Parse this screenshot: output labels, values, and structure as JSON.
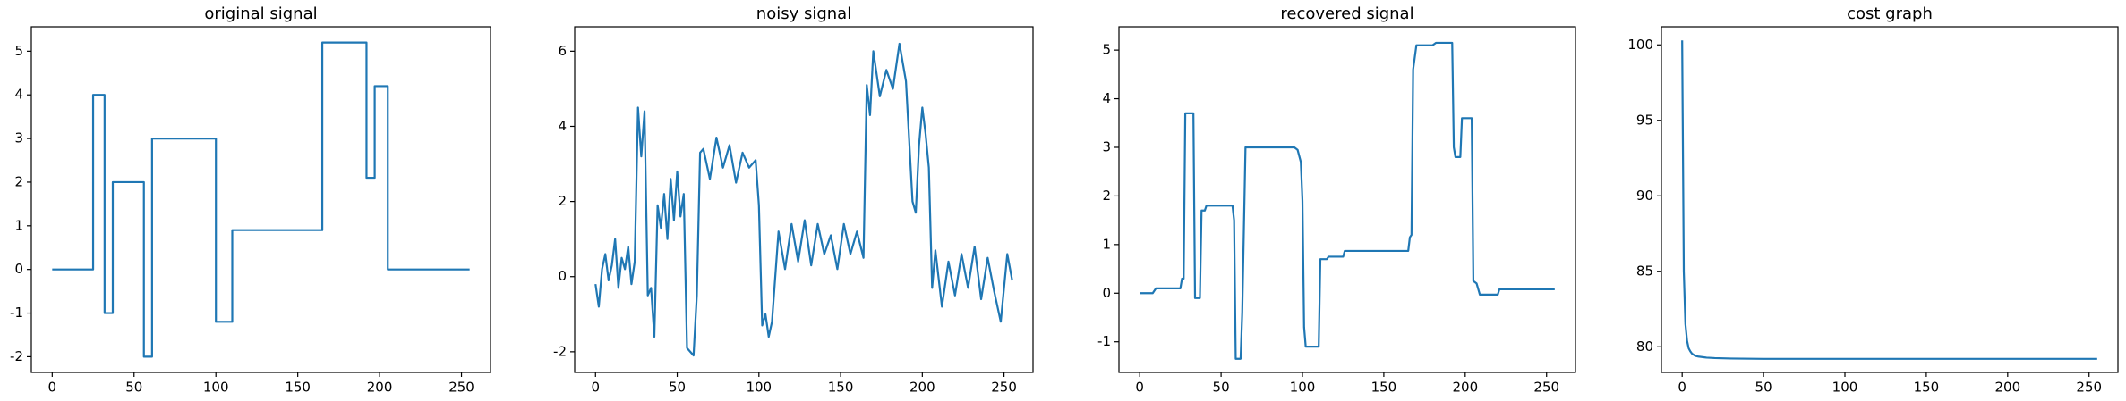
{
  "chart_data": [
    {
      "type": "line",
      "title": "original signal",
      "color": "#1f77b4",
      "x": [
        0,
        25,
        25,
        32,
        32,
        37,
        37,
        56,
        56,
        61,
        61,
        100,
        100,
        110,
        110,
        165,
        165,
        192,
        192,
        197,
        197,
        205,
        205,
        255
      ],
      "values": [
        0,
        0,
        4,
        4,
        -1,
        -1,
        2,
        2,
        -2,
        -2,
        3,
        3,
        -1.2,
        -1.2,
        0.9,
        0.9,
        5.2,
        5.2,
        2.1,
        2.1,
        4.2,
        4.2,
        0,
        0
      ],
      "xlim": [
        -12.75,
        267.75
      ],
      "ylim": [
        -2.36,
        5.56
      ],
      "xticks": [
        0,
        50,
        100,
        150,
        200,
        250
      ],
      "yticks": [
        -2,
        -1,
        0,
        1,
        2,
        3,
        4,
        5
      ]
    },
    {
      "type": "line",
      "title": "noisy signal",
      "color": "#1f77b4",
      "x": [
        0,
        2,
        4,
        6,
        8,
        10,
        12,
        14,
        16,
        18,
        20,
        22,
        24,
        26,
        28,
        30,
        32,
        34,
        36,
        38,
        40,
        42,
        44,
        46,
        48,
        50,
        52,
        54,
        56,
        58,
        60,
        62,
        64,
        66,
        70,
        74,
        78,
        82,
        86,
        90,
        94,
        98,
        100,
        102,
        104,
        106,
        108,
        112,
        116,
        120,
        124,
        128,
        132,
        136,
        140,
        144,
        148,
        152,
        156,
        160,
        164,
        166,
        168,
        170,
        174,
        178,
        182,
        186,
        190,
        194,
        196,
        198,
        200,
        202,
        204,
        206,
        208,
        212,
        216,
        220,
        224,
        228,
        232,
        236,
        240,
        244,
        248,
        252,
        255
      ],
      "values": [
        -0.2,
        -0.8,
        0.2,
        0.6,
        -0.1,
        0.3,
        1.0,
        -0.3,
        0.5,
        0.2,
        0.8,
        -0.2,
        0.4,
        4.5,
        3.2,
        4.4,
        -0.5,
        -0.3,
        -1.6,
        1.9,
        1.3,
        2.2,
        1.0,
        2.6,
        1.5,
        2.8,
        1.6,
        2.2,
        -1.9,
        -2.0,
        -2.1,
        -0.5,
        3.3,
        3.4,
        2.6,
        3.7,
        2.9,
        3.5,
        2.5,
        3.3,
        2.9,
        3.1,
        1.9,
        -1.3,
        -1.0,
        -1.6,
        -1.2,
        1.2,
        0.2,
        1.4,
        0.4,
        1.5,
        0.3,
        1.4,
        0.6,
        1.1,
        0.2,
        1.4,
        0.6,
        1.2,
        0.5,
        5.1,
        4.3,
        6.0,
        4.8,
        5.5,
        5.0,
        6.2,
        5.2,
        2.0,
        1.7,
        3.5,
        4.5,
        3.8,
        2.9,
        -0.3,
        0.7,
        -0.8,
        0.4,
        -0.5,
        0.6,
        -0.3,
        0.8,
        -0.6,
        0.5,
        -0.4,
        -1.2,
        0.6,
        -0.1
      ],
      "xlim": [
        -12.75,
        267.75
      ],
      "ylim": [
        -2.55,
        6.65
      ],
      "xticks": [
        0,
        50,
        100,
        150,
        200,
        250
      ],
      "yticks": [
        -2,
        0,
        2,
        4,
        6
      ]
    },
    {
      "type": "line",
      "title": "recovered signal",
      "color": "#1f77b4",
      "x": [
        0,
        8,
        10,
        25,
        26,
        27,
        28,
        33,
        34,
        37,
        38,
        40,
        41,
        57,
        58,
        59,
        62,
        63,
        65,
        95,
        97,
        99,
        100,
        101,
        102,
        110,
        111,
        115,
        116,
        125,
        126,
        165,
        166,
        167,
        168,
        170,
        180,
        182,
        192,
        193,
        194,
        197,
        198,
        204,
        205,
        207,
        209,
        220,
        221,
        255
      ],
      "values": [
        0,
        0,
        0.1,
        0.1,
        0.3,
        0.3,
        3.7,
        3.7,
        -0.1,
        -0.1,
        1.7,
        1.7,
        1.8,
        1.8,
        1.5,
        -1.35,
        -1.35,
        -0.4,
        3.0,
        3.0,
        2.95,
        2.7,
        1.9,
        -0.7,
        -1.1,
        -1.1,
        0.7,
        0.7,
        0.75,
        0.75,
        0.87,
        0.87,
        1.15,
        1.2,
        4.6,
        5.1,
        5.1,
        5.15,
        5.15,
        3.0,
        2.8,
        2.8,
        3.6,
        3.6,
        0.25,
        0.2,
        -0.03,
        -0.03,
        0.08,
        0.08
      ],
      "xlim": [
        -12.75,
        267.75
      ],
      "ylim": [
        -1.63,
        5.48
      ],
      "xticks": [
        0,
        50,
        100,
        150,
        200,
        250
      ],
      "yticks": [
        -1,
        0,
        1,
        2,
        3,
        4,
        5
      ]
    },
    {
      "type": "line",
      "title": "cost graph",
      "color": "#1f77b4",
      "x": [
        0,
        1,
        2,
        3,
        4,
        5,
        6,
        8,
        10,
        15,
        20,
        30,
        50,
        255
      ],
      "values": [
        100.3,
        85.0,
        81.5,
        80.4,
        79.9,
        79.7,
        79.55,
        79.4,
        79.35,
        79.28,
        79.25,
        79.22,
        79.2,
        79.2
      ],
      "xlim": [
        -12.75,
        267.75
      ],
      "ylim": [
        78.3,
        101.2
      ],
      "xticks": [
        0,
        50,
        100,
        150,
        200,
        250
      ],
      "yticks": [
        80,
        85,
        90,
        95,
        100
      ]
    }
  ]
}
